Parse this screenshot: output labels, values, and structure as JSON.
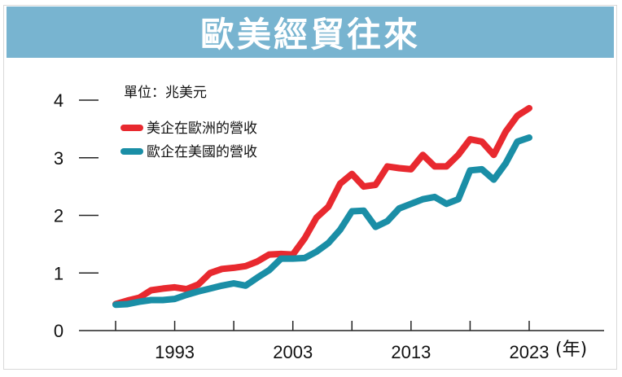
{
  "header": {
    "title": "歐美經貿往來"
  },
  "unit_label": "單位：兆美元",
  "x_unit_label": "(年)",
  "colors": {
    "banner": "#78b4d0",
    "us_in_eu": "#e8292f",
    "eu_in_us": "#1a8ea6",
    "axis": "#222222"
  },
  "chart_data": {
    "type": "line",
    "title": "歐美經貿往來",
    "ylabel": "單位：兆美元",
    "xlabel": "(年)",
    "ylim": [
      0,
      4
    ],
    "xlim": [
      1984,
      2031
    ],
    "y_ticks": [
      0,
      1,
      2,
      3,
      4
    ],
    "x_ticks": [
      1993,
      2003,
      2013,
      2023
    ],
    "legend_position": "top-left",
    "grid": false,
    "x": [
      1988,
      1989,
      1990,
      1991,
      1992,
      1993,
      1994,
      1995,
      1996,
      1997,
      1998,
      1999,
      2000,
      2001,
      2002,
      2003,
      2004,
      2005,
      2006,
      2007,
      2008,
      2009,
      2010,
      2011,
      2012,
      2013,
      2014,
      2015,
      2016,
      2017,
      2018,
      2019,
      2020,
      2021,
      2022,
      2023
    ],
    "series": [
      {
        "name": "美企在歐洲的營收",
        "color": "#e8292f",
        "values": [
          0.46,
          0.52,
          0.57,
          0.7,
          0.73,
          0.75,
          0.72,
          0.8,
          1.0,
          1.07,
          1.09,
          1.12,
          1.2,
          1.32,
          1.33,
          1.32,
          1.6,
          1.96,
          2.15,
          2.55,
          2.72,
          2.5,
          2.53,
          2.85,
          2.82,
          2.8,
          3.05,
          2.85,
          2.85,
          3.05,
          3.32,
          3.28,
          3.05,
          3.45,
          3.73,
          3.86
        ]
      },
      {
        "name": "歐企在美國的營收",
        "color": "#1a8ea6",
        "values": [
          0.45,
          0.46,
          0.5,
          0.53,
          0.53,
          0.55,
          0.62,
          0.68,
          0.73,
          0.78,
          0.82,
          0.78,
          0.92,
          1.05,
          1.25,
          1.25,
          1.26,
          1.37,
          1.52,
          1.75,
          2.07,
          2.08,
          1.8,
          1.9,
          2.12,
          2.2,
          2.28,
          2.32,
          2.2,
          2.28,
          2.78,
          2.8,
          2.62,
          2.9,
          3.28,
          3.35
        ]
      }
    ]
  }
}
